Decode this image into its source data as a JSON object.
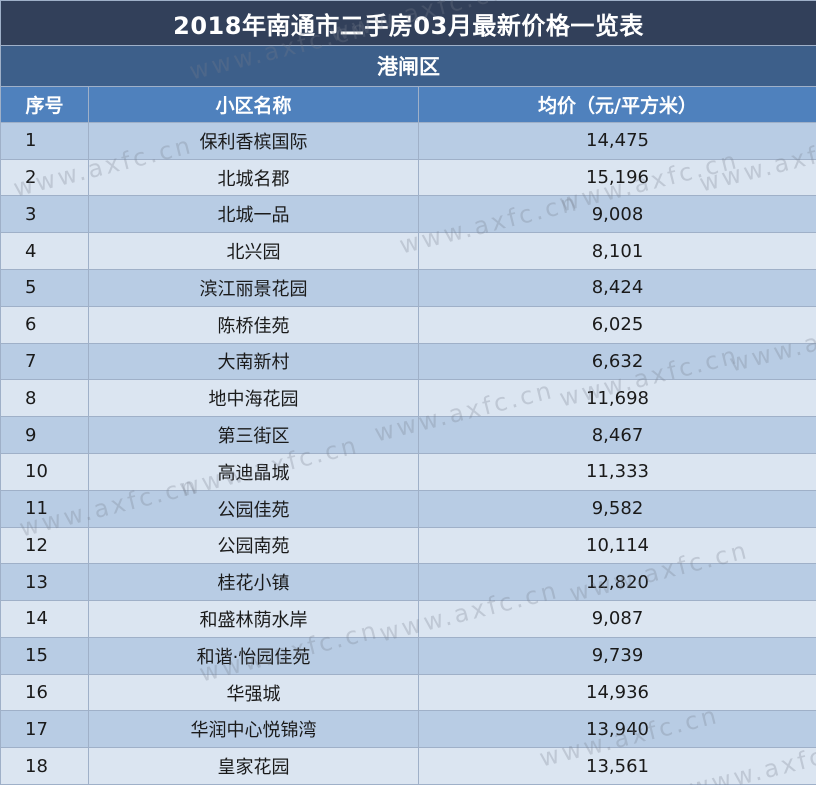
{
  "title": "2018年南通市二手房03月最新价格一览表",
  "district": "港闸区",
  "columns": {
    "index": "序号",
    "name": "小区名称",
    "price": "均价（元/平方米）"
  },
  "rows": [
    {
      "index": "1",
      "name": "保利香槟国际",
      "price": "14,475"
    },
    {
      "index": "2",
      "name": "北城名郡",
      "price": "15,196"
    },
    {
      "index": "3",
      "name": "北城一品",
      "price": "9,008"
    },
    {
      "index": "4",
      "name": "北兴园",
      "price": "8,101"
    },
    {
      "index": "5",
      "name": "滨江丽景花园",
      "price": "8,424"
    },
    {
      "index": "6",
      "name": "陈桥佳苑",
      "price": "6,025"
    },
    {
      "index": "7",
      "name": "大南新村",
      "price": "6,632"
    },
    {
      "index": "8",
      "name": "地中海花园",
      "price": "11,698"
    },
    {
      "index": "9",
      "name": "第三街区",
      "price": "8,467"
    },
    {
      "index": "10",
      "name": "高迪晶城",
      "price": "11,333"
    },
    {
      "index": "11",
      "name": "公园佳苑",
      "price": "9,582"
    },
    {
      "index": "12",
      "name": "公园南苑",
      "price": "10,114"
    },
    {
      "index": "13",
      "name": "桂花小镇",
      "price": "12,820"
    },
    {
      "index": "14",
      "name": "和盛林荫水岸",
      "price": "9,087"
    },
    {
      "index": "15",
      "name": "和谐·怡园佳苑",
      "price": "9,739"
    },
    {
      "index": "16",
      "name": "华强城",
      "price": "14,936"
    },
    {
      "index": "17",
      "name": "华润中心悦锦湾",
      "price": "13,940"
    },
    {
      "index": "18",
      "name": "皇家花园",
      "price": "13,561"
    }
  ],
  "watermark": "www.axfc.cn"
}
